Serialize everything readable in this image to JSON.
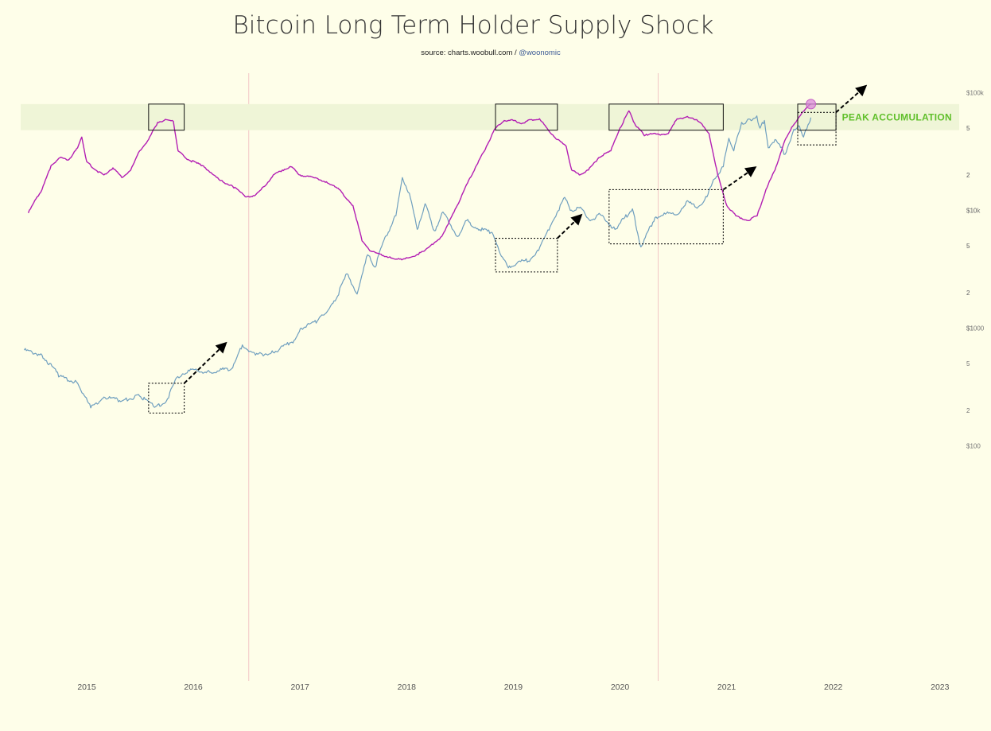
{
  "header": {
    "title": "Bitcoin Long Term Holder Supply Shock",
    "source_prefix": "source: charts.woobull.com / ",
    "source_handle": "@woonomic"
  },
  "colors": {
    "background": "#fefee9",
    "price_line": "#6f9fbf",
    "shock_line": "#b31fb3",
    "band": "#eff5d7",
    "band_label": "#5fbf2a",
    "halving_line": "#f2c6c6"
  },
  "chart_data": [
    {
      "type": "line",
      "title": "Bitcoin Long Term Holder Supply Shock",
      "yscale": "log",
      "ylim": [
        100,
        120000
      ],
      "y_tick_labels": [
        "$100k",
        "5",
        "2",
        "$10k",
        "5",
        "2",
        "$1000",
        "5",
        "2",
        "$100"
      ],
      "x_tick_labels": [
        "2015",
        "2016",
        "2017",
        "2018",
        "2019",
        "2020",
        "2021",
        "2022",
        "2023"
      ],
      "vertical_markers": [
        "2016-07-09",
        "2020-05-11"
      ],
      "series": [
        {
          "role": "price",
          "points": [
            [
              "2014-06-01",
              650
            ],
            [
              "2014-08-01",
              590
            ],
            [
              "2014-10-01",
              390
            ],
            [
              "2014-12-01",
              340
            ],
            [
              "2015-01-15",
              210
            ],
            [
              "2015-03-01",
              260
            ],
            [
              "2015-05-01",
              240
            ],
            [
              "2015-07-01",
              265
            ],
            [
              "2015-08-25",
              215
            ],
            [
              "2015-10-01",
              240
            ],
            [
              "2015-11-05",
              380
            ],
            [
              "2015-12-15",
              440
            ],
            [
              "2016-03-01",
              420
            ],
            [
              "2016-05-15",
              460
            ],
            [
              "2016-06-17",
              720
            ],
            [
              "2016-08-01",
              590
            ],
            [
              "2016-10-01",
              620
            ],
            [
              "2016-12-15",
              800
            ],
            [
              "2017-01-05",
              1000
            ],
            [
              "2017-03-01",
              1150
            ],
            [
              "2017-05-01",
              1700
            ],
            [
              "2017-06-10",
              2900
            ],
            [
              "2017-07-15",
              1950
            ],
            [
              "2017-08-20",
              4200
            ],
            [
              "2017-09-15",
              3300
            ],
            [
              "2017-10-15",
              5600
            ],
            [
              "2017-11-25",
              9000
            ],
            [
              "2017-12-17",
              19000
            ],
            [
              "2018-01-10",
              14000
            ],
            [
              "2018-02-06",
              6900
            ],
            [
              "2018-03-05",
              11400
            ],
            [
              "2018-04-06",
              6700
            ],
            [
              "2018-05-05",
              9700
            ],
            [
              "2018-06-25",
              6000
            ],
            [
              "2018-07-25",
              8200
            ],
            [
              "2018-09-01",
              7000
            ],
            [
              "2018-10-20",
              6500
            ],
            [
              "2018-11-25",
              4000
            ],
            [
              "2018-12-15",
              3250
            ],
            [
              "2019-01-15",
              3600
            ],
            [
              "2019-03-01",
              3850
            ],
            [
              "2019-04-02",
              4900
            ],
            [
              "2019-05-15",
              8000
            ],
            [
              "2019-06-26",
              12900
            ],
            [
              "2019-07-15",
              10000
            ],
            [
              "2019-08-15",
              10500
            ],
            [
              "2019-09-25",
              8300
            ],
            [
              "2019-10-26",
              9200
            ],
            [
              "2019-12-15",
              6900
            ],
            [
              "2020-02-13",
              10300
            ],
            [
              "2020-03-13",
              4900
            ],
            [
              "2020-04-30",
              8700
            ],
            [
              "2020-06-01",
              9500
            ],
            [
              "2020-07-15",
              9200
            ],
            [
              "2020-08-15",
              11800
            ],
            [
              "2020-09-25",
              10700
            ],
            [
              "2020-10-25",
              13000
            ],
            [
              "2020-11-20",
              18500
            ],
            [
              "2020-12-20",
              23500
            ],
            [
              "2021-01-08",
              41000
            ],
            [
              "2021-01-25",
              32000
            ],
            [
              "2021-02-21",
              56000
            ],
            [
              "2021-03-10",
              57000
            ],
            [
              "2021-04-14",
              63500
            ],
            [
              "2021-04-25",
              50000
            ],
            [
              "2021-05-10",
              58000
            ],
            [
              "2021-05-23",
              34000
            ],
            [
              "2021-06-15",
              40000
            ],
            [
              "2021-07-20",
              30000
            ],
            [
              "2021-08-15",
              46000
            ],
            [
              "2021-09-07",
              52000
            ],
            [
              "2021-09-21",
              42000
            ],
            [
              "2021-10-10",
              55000
            ],
            [
              "2021-10-16",
              61500
            ]
          ]
        },
        {
          "role": "supply_shock",
          "points": [
            [
              "2014-06-15",
              9.5
            ],
            [
              "2014-07-15",
              13
            ],
            [
              "2014-08-01",
              15
            ],
            [
              "2014-09-01",
              24
            ],
            [
              "2014-10-01",
              28
            ],
            [
              "2014-11-01",
              27
            ],
            [
              "2014-12-01",
              34
            ],
            [
              "2014-12-15",
              42
            ],
            [
              "2015-01-01",
              26
            ],
            [
              "2015-02-01",
              22
            ],
            [
              "2015-03-01",
              20
            ],
            [
              "2015-04-01",
              23
            ],
            [
              "2015-05-01",
              19
            ],
            [
              "2015-06-01",
              22
            ],
            [
              "2015-07-01",
              32
            ],
            [
              "2015-08-01",
              40
            ],
            [
              "2015-09-01",
              56
            ],
            [
              "2015-10-01",
              59
            ],
            [
              "2015-10-25",
              57
            ],
            [
              "2015-11-10",
              32
            ],
            [
              "2015-12-15",
              27
            ],
            [
              "2016-02-01",
              24
            ],
            [
              "2016-03-01",
              21
            ],
            [
              "2016-04-01",
              18
            ],
            [
              "2016-05-15",
              16
            ],
            [
              "2016-07-01",
              13
            ],
            [
              "2016-08-01",
              13.5
            ],
            [
              "2016-09-01",
              16
            ],
            [
              "2016-10-01",
              20
            ],
            [
              "2016-11-01",
              22
            ],
            [
              "2016-12-01",
              23.5
            ],
            [
              "2017-01-01",
              20
            ],
            [
              "2017-02-15",
              19
            ],
            [
              "2017-04-01",
              17.5
            ],
            [
              "2017-05-15",
              15
            ],
            [
              "2017-07-01",
              11
            ],
            [
              "2017-08-01",
              5.5
            ],
            [
              "2017-09-01",
              4.5
            ],
            [
              "2017-11-01",
              4
            ],
            [
              "2017-12-15",
              3.8
            ],
            [
              "2018-01-15",
              4
            ],
            [
              "2018-03-01",
              4.5
            ],
            [
              "2018-05-01",
              6
            ],
            [
              "2018-07-01",
              12
            ],
            [
              "2018-08-01",
              18
            ],
            [
              "2018-09-01",
              25
            ],
            [
              "2018-10-01",
              35
            ],
            [
              "2018-11-01",
              50
            ],
            [
              "2018-12-01",
              58
            ],
            [
              "2019-01-01",
              58
            ],
            [
              "2019-02-01",
              55
            ],
            [
              "2019-03-01",
              59
            ],
            [
              "2019-04-01",
              60
            ],
            [
              "2019-05-01",
              48
            ],
            [
              "2019-06-01",
              40
            ],
            [
              "2019-07-01",
              35
            ],
            [
              "2019-07-20",
              22
            ],
            [
              "2019-08-15",
              20
            ],
            [
              "2019-09-15",
              22
            ],
            [
              "2019-10-20",
              28
            ],
            [
              "2019-12-01",
              32
            ],
            [
              "2020-01-01",
              50
            ],
            [
              "2020-02-01",
              70
            ],
            [
              "2020-02-20",
              55
            ],
            [
              "2020-03-25",
              43
            ],
            [
              "2020-04-15",
              45
            ],
            [
              "2020-05-15",
              44
            ],
            [
              "2020-06-15",
              45
            ],
            [
              "2020-07-15",
              60
            ],
            [
              "2020-08-15",
              62
            ],
            [
              "2020-09-20",
              59
            ],
            [
              "2020-10-01",
              56
            ],
            [
              "2020-11-01",
              45
            ],
            [
              "2020-12-01",
              20
            ],
            [
              "2021-01-01",
              11
            ],
            [
              "2021-02-01",
              9
            ],
            [
              "2021-03-15",
              8.2
            ],
            [
              "2021-04-15",
              9
            ],
            [
              "2021-05-15",
              15
            ],
            [
              "2021-06-15",
              22
            ],
            [
              "2021-07-15",
              37
            ],
            [
              "2021-08-15",
              52
            ],
            [
              "2021-09-15",
              67
            ],
            [
              "2021-10-16",
              80
            ]
          ]
        }
      ],
      "highlight_band": {
        "label": "PEAK ACCUMULATION",
        "y_range": [
          48,
          80
        ]
      },
      "annotations": [
        {
          "type": "box",
          "style": "dotted",
          "x_range": [
            "2015-08-01",
            "2015-12-01"
          ],
          "y_range": [
            190,
            340
          ]
        },
        {
          "type": "box",
          "style": "dotted",
          "x_range": [
            "2018-11-01",
            "2019-06-01"
          ],
          "y_range": [
            3000,
            5800
          ]
        },
        {
          "type": "box",
          "style": "dotted",
          "x_range": [
            "2019-11-25",
            "2020-12-20"
          ],
          "y_range": [
            5200,
            15000
          ]
        },
        {
          "type": "box",
          "style": "dotted",
          "x_range": [
            "2021-09-01",
            "2022-01-10"
          ],
          "y_range": [
            36000,
            68000
          ]
        },
        {
          "type": "box",
          "style": "solid",
          "x_range": [
            "2015-08-01",
            "2015-12-01"
          ],
          "y_range": [
            48,
            80
          ]
        },
        {
          "type": "box",
          "style": "solid",
          "x_range": [
            "2018-11-01",
            "2019-06-01"
          ],
          "y_range": [
            48,
            80
          ]
        },
        {
          "type": "box",
          "style": "solid",
          "x_range": [
            "2019-11-25",
            "2020-12-20"
          ],
          "y_range": [
            48,
            80
          ]
        },
        {
          "type": "box",
          "style": "solid",
          "x_range": [
            "2021-09-01",
            "2022-01-10"
          ],
          "y_range": [
            48,
            80
          ]
        },
        {
          "type": "arrow",
          "from": [
            "2015-12-01",
            340
          ],
          "to": [
            "2016-04-15",
            720
          ]
        },
        {
          "type": "arrow",
          "from": [
            "2019-06-01",
            5800
          ],
          "to": [
            "2019-08-15",
            8800
          ]
        },
        {
          "type": "arrow",
          "from": [
            "2020-12-20",
            15000
          ],
          "to": [
            "2021-04-01",
            22500
          ]
        },
        {
          "type": "arrow",
          "from": [
            "2022-01-10",
            68000
          ],
          "to": [
            "2022-04-15",
            110000
          ]
        }
      ],
      "current_marker": {
        "x": "2021-10-16",
        "y": 80
      }
    }
  ]
}
